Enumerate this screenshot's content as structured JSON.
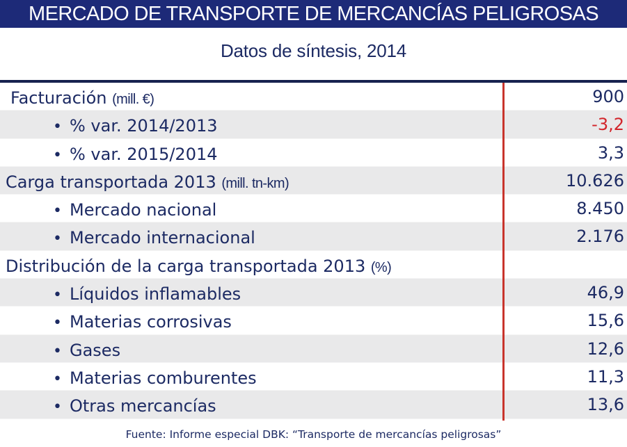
{
  "header": {
    "title": "MERCADO DE TRANSPORTE DE MERCANCÍAS PELIGROSAS",
    "subtitle": "Datos de síntesis, 2014"
  },
  "colors": {
    "title_bar": "#1d2a78",
    "text": "#1c2a63",
    "negative": "#d2252b",
    "divider": "#c8342c",
    "row_shade": "#e9e9ea"
  },
  "rows": [
    {
      "label": "Facturación",
      "unit": "(mill. €)",
      "value": "900",
      "level": 0
    },
    {
      "label": "% var. 2014/2013",
      "unit": "",
      "value": "-3,2",
      "level": 1,
      "negative": true
    },
    {
      "label": "% var. 2015/2014",
      "unit": "",
      "value": "3,3",
      "level": 1
    },
    {
      "label": "Carga transportada 2013",
      "unit": "(mill. tn-km)",
      "value": "10.626",
      "level": 0
    },
    {
      "label": "Mercado nacional",
      "unit": "",
      "value": "8.450",
      "level": 1
    },
    {
      "label": "Mercado internacional",
      "unit": "",
      "value": "2.176",
      "level": 1
    },
    {
      "label": "Distribución de la carga transportada 2013",
      "unit": "(%)",
      "value": "",
      "level": 0
    },
    {
      "label": "Líquidos inflamables",
      "unit": "",
      "value": "46,9",
      "level": 1
    },
    {
      "label": "Materias corrosivas",
      "unit": "",
      "value": "15,6",
      "level": 1
    },
    {
      "label": "Gases",
      "unit": "",
      "value": "12,6",
      "level": 1
    },
    {
      "label": "Materias comburentes",
      "unit": "",
      "value": "11,3",
      "level": 1
    },
    {
      "label": "Otras mercancías",
      "unit": "",
      "value": "13,6",
      "level": 1
    }
  ],
  "bullet_char": "•",
  "footer": "Fuente: Informe especial DBK: “Transporte de mercancías peligrosas”"
}
